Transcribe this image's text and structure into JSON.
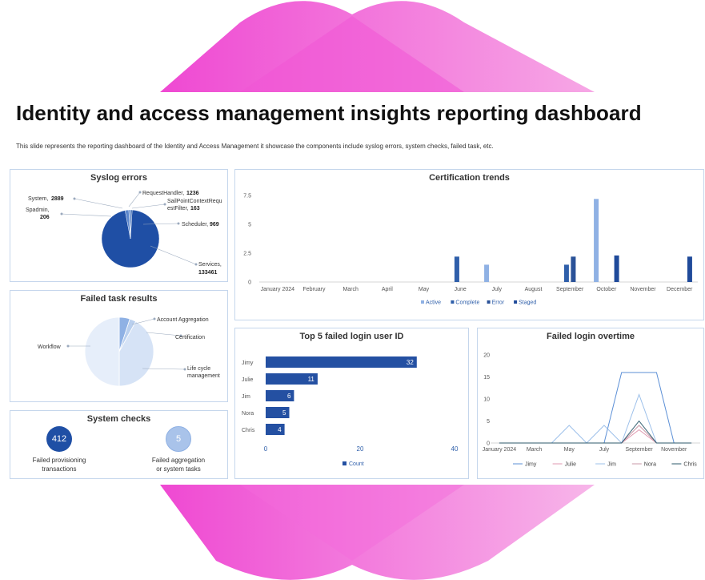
{
  "title": "Identity and access management insights reporting dashboard",
  "subtitle": "This slide represents the reporting dashboard of the Identity and Access Management it showcase the components include syslog errors, system checks, failed task, etc.",
  "colors": {
    "accent_dark": "#1f4fa5",
    "accent_mid": "#3a6fc2",
    "accent_light": "#8fb1e4",
    "accent_pale": "#dbe6f6",
    "decor_pink": "#ee3fd0"
  },
  "syslog": {
    "title": "Syslog errors",
    "chart_data": {
      "type": "pie",
      "title": "Syslog errors",
      "slices": [
        {
          "name": "Services",
          "value": 133461
        },
        {
          "name": "System",
          "value": 2889
        },
        {
          "name": "Spadmin",
          "value": 206
        },
        {
          "name": "RequestHandler",
          "value": 1236
        },
        {
          "name": "SailPointContextRequestFilter",
          "value": 163
        },
        {
          "name": "Scheduler",
          "value": 969
        }
      ]
    },
    "labels": {
      "system_name": "System,",
      "system_value": "2889",
      "spadmin_name": "Spadmin,",
      "spadmin_value": "206",
      "request_name": "RequestHandler,",
      "request_value": "1236",
      "sailpoint_line1": "SailPointContextRequ",
      "sailpoint_line2": "estFilter,",
      "sailpoint_value": "163",
      "scheduler_name": "Scheduler,",
      "scheduler_value": "969",
      "services_name": "Services,",
      "services_value": "133461"
    }
  },
  "failed_tasks": {
    "title": "Failed task results",
    "chart_data": {
      "type": "pie",
      "title": "Failed task results",
      "slices": [
        {
          "name": "Account Aggregation",
          "value": 5
        },
        {
          "name": "Certification",
          "value": 3
        },
        {
          "name": "Life cycle management",
          "value": 42
        },
        {
          "name": "Workflow",
          "value": 50
        }
      ]
    },
    "labels": {
      "account": "Account Aggregation",
      "certification": "Certification",
      "lifecycle_line1": "Life cycle",
      "lifecycle_line2": "management",
      "workflow": "Workflow"
    }
  },
  "system_checks": {
    "title": "System checks",
    "items": [
      {
        "value": "412",
        "line1": "Failed provisioning",
        "line2": "transactions"
      },
      {
        "value": "5",
        "line1": "Failed aggregation",
        "line2": "or system tasks"
      }
    ]
  },
  "certification": {
    "title": "Certification trends",
    "chart_data": {
      "type": "bar",
      "title": "Certification trends",
      "categories": [
        "January 2024",
        "February",
        "March",
        "April",
        "May",
        "June",
        "July",
        "August",
        "September",
        "October",
        "November",
        "December"
      ],
      "ylim": [
        0,
        7.5
      ],
      "yticks": [
        "7.5",
        "5",
        "2.5",
        "0"
      ],
      "series": [
        {
          "name": "Active",
          "color": "#8fb1e4",
          "values": [
            0,
            0,
            0,
            0,
            0,
            0,
            1.5,
            0,
            0,
            7.2,
            0,
            0
          ]
        },
        {
          "name": "Complete",
          "color": "#2f5faa",
          "values": [
            0,
            0,
            0,
            0,
            0,
            2.2,
            0,
            0,
            1.5,
            0,
            0,
            0
          ]
        },
        {
          "name": "Error",
          "color": "#2a5298",
          "values": [
            0,
            0,
            0,
            0,
            0,
            0,
            0,
            0,
            2.2,
            0,
            0,
            0
          ]
        },
        {
          "name": "Staged",
          "color": "#1f4a9a",
          "values": [
            0,
            0,
            0,
            0,
            0,
            0,
            0,
            0,
            0,
            2.3,
            0,
            2.2
          ]
        }
      ]
    }
  },
  "top5": {
    "title": "Top 5 failed login user ID",
    "chart_data": {
      "type": "bar",
      "orientation": "horizontal",
      "title": "Top 5 failed login user ID",
      "categories": [
        "Jimy",
        "Julie",
        "Jim",
        "Nora",
        "Chris"
      ],
      "values": [
        32,
        11,
        6,
        5,
        4
      ],
      "xlim": [
        0,
        40
      ],
      "xticks": [
        "0",
        "20",
        "40"
      ],
      "series_name": "Count"
    }
  },
  "overtime": {
    "title": "Failed login overtime",
    "chart_data": {
      "type": "line",
      "title": "Failed login overtime",
      "x": [
        "January 2024",
        "February",
        "March",
        "April",
        "May",
        "June",
        "July",
        "August",
        "September",
        "October",
        "November",
        "December"
      ],
      "x_tick_labels": [
        "January 2024",
        "March",
        "May",
        "July",
        "September",
        "November"
      ],
      "ylim": [
        0,
        20
      ],
      "yticks": [
        "20",
        "15",
        "10",
        "5",
        "0"
      ],
      "series": [
        {
          "name": "Jimy",
          "color": "#5b8fd6",
          "values": [
            0,
            0,
            0,
            0,
            0,
            0,
            0,
            16,
            16,
            16,
            0,
            0
          ]
        },
        {
          "name": "Julie",
          "color": "#e09ab0",
          "values": [
            0,
            0,
            0,
            0,
            0,
            0,
            0,
            0,
            3,
            0,
            0,
            0
          ]
        },
        {
          "name": "Jim",
          "color": "#9dc0ea",
          "values": [
            0,
            0,
            0,
            0,
            4,
            0,
            4,
            0,
            11,
            0,
            0,
            0
          ]
        },
        {
          "name": "Nora",
          "color": "#c89aa8",
          "values": [
            0,
            0,
            0,
            0,
            0,
            0,
            0,
            0,
            4,
            0,
            0,
            0
          ]
        },
        {
          "name": "Chris",
          "color": "#2d5a6b",
          "values": [
            0,
            0,
            0,
            0,
            0,
            0,
            0,
            0,
            5,
            0,
            0,
            0
          ]
        }
      ]
    }
  }
}
